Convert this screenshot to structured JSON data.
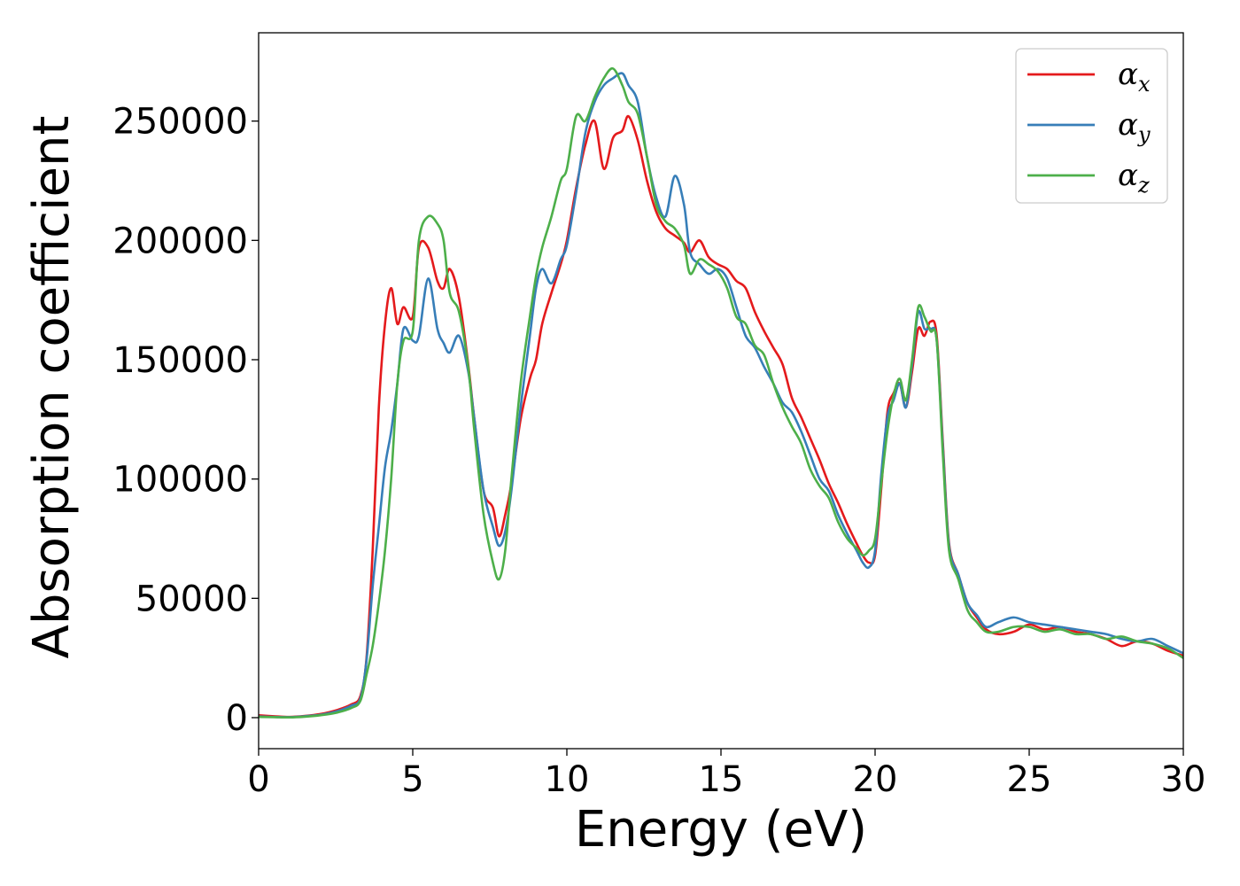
{
  "chart_data": {
    "type": "line",
    "title": "",
    "xlabel": "Energy (eV)",
    "ylabel": "Absorption coefficient",
    "xlim": [
      0,
      30
    ],
    "ylim": [
      -13000,
      287000
    ],
    "xticks": [
      0,
      5,
      10,
      15,
      20,
      25,
      30
    ],
    "xtick_labels": [
      "0",
      "5",
      "10",
      "15",
      "20",
      "25",
      "30"
    ],
    "yticks": [
      0,
      50000,
      100000,
      150000,
      200000,
      250000
    ],
    "ytick_labels": [
      "0",
      "50000",
      "100000",
      "150000",
      "200000",
      "250000"
    ],
    "grid": false,
    "legend_position": "top-right",
    "x": [
      0,
      0.5,
      1,
      1.5,
      2,
      2.5,
      3,
      3.3,
      3.5,
      3.7,
      3.9,
      4.1,
      4.3,
      4.5,
      4.7,
      5,
      5.2,
      5.5,
      5.8,
      6,
      6.2,
      6.5,
      6.8,
      7,
      7.3,
      7.6,
      7.8,
      8,
      8.2,
      8.5,
      8.8,
      9,
      9.2,
      9.5,
      9.8,
      10,
      10.3,
      10.6,
      10.9,
      11.2,
      11.5,
      11.8,
      12,
      12.3,
      12.6,
      12.9,
      13.2,
      13.5,
      13.8,
      14,
      14.3,
      14.6,
      14.9,
      15.2,
      15.5,
      15.8,
      16.1,
      16.4,
      16.7,
      17,
      17.3,
      17.6,
      17.9,
      18.2,
      18.5,
      18.8,
      19.1,
      19.4,
      19.6,
      19.8,
      20,
      20.2,
      20.4,
      20.6,
      20.8,
      21,
      21.2,
      21.4,
      21.6,
      21.8,
      22,
      22.2,
      22.4,
      22.7,
      23,
      23.3,
      23.6,
      24,
      24.5,
      25,
      25.5,
      26,
      26.5,
      27,
      27.5,
      28,
      28.5,
      29,
      29.5,
      30
    ],
    "series": [
      {
        "name": "αx",
        "label_base": "α",
        "label_sub": "x",
        "color": "#e41a1c",
        "values": [
          1000,
          600,
          300,
          700,
          1500,
          3000,
          5500,
          9000,
          25000,
          70000,
          130000,
          165000,
          180000,
          165000,
          172000,
          168000,
          197000,
          197000,
          183000,
          180000,
          188000,
          176000,
          148000,
          125000,
          95000,
          88000,
          76000,
          85000,
          98000,
          125000,
          142000,
          150000,
          165000,
          178000,
          190000,
          200000,
          222000,
          240000,
          250000,
          230000,
          243000,
          246000,
          252000,
          242000,
          225000,
          212000,
          205000,
          202000,
          199000,
          195000,
          200000,
          193000,
          190000,
          188000,
          183000,
          180000,
          170000,
          162000,
          155000,
          148000,
          134000,
          126000,
          117000,
          108000,
          98000,
          90000,
          81000,
          73000,
          68000,
          65000,
          68000,
          96000,
          128000,
          136000,
          140000,
          130000,
          145000,
          163000,
          160000,
          166000,
          160000,
          115000,
          73000,
          60000,
          48000,
          42000,
          37000,
          35000,
          36000,
          39000,
          37000,
          38000,
          36000,
          35000,
          33000,
          30000,
          32000,
          31000,
          28000,
          26000
        ]
      },
      {
        "name": "αy",
        "label_base": "α",
        "label_sub": "y",
        "color": "#377eb8",
        "values": [
          500,
          300,
          200,
          600,
          1200,
          2500,
          5000,
          8000,
          24000,
          55000,
          80000,
          105000,
          120000,
          140000,
          163000,
          158000,
          160000,
          184000,
          163000,
          157000,
          153000,
          160000,
          145000,
          125000,
          95000,
          80000,
          72000,
          78000,
          95000,
          130000,
          160000,
          180000,
          188000,
          182000,
          192000,
          198000,
          220000,
          245000,
          258000,
          265000,
          268000,
          270000,
          265000,
          258000,
          235000,
          218000,
          210000,
          227000,
          215000,
          195000,
          190000,
          186000,
          188000,
          184000,
          172000,
          160000,
          155000,
          147000,
          140000,
          132000,
          128000,
          120000,
          110000,
          100000,
          95000,
          85000,
          77000,
          70000,
          65000,
          63000,
          70000,
          102000,
          126000,
          133000,
          140000,
          130000,
          148000,
          170000,
          163000,
          163000,
          158000,
          113000,
          72000,
          60000,
          48000,
          43000,
          38000,
          40000,
          42000,
          40000,
          39000,
          38000,
          37000,
          36000,
          35000,
          33000,
          32000,
          33000,
          30000,
          27000
        ]
      },
      {
        "name": "αz",
        "label_base": "α",
        "label_sub": "z",
        "color": "#4daf4a",
        "values": [
          300,
          200,
          100,
          400,
          1000,
          2000,
          4000,
          7000,
          18000,
          30000,
          48000,
          70000,
          100000,
          140000,
          158000,
          162000,
          200000,
          210000,
          207000,
          200000,
          178000,
          170000,
          147000,
          120000,
          85000,
          65000,
          58000,
          70000,
          100000,
          140000,
          168000,
          185000,
          197000,
          210000,
          225000,
          230000,
          252000,
          250000,
          260000,
          268000,
          272000,
          265000,
          258000,
          253000,
          235000,
          215000,
          208000,
          205000,
          198000,
          186000,
          192000,
          190000,
          187000,
          180000,
          168000,
          165000,
          156000,
          152000,
          140000,
          130000,
          122000,
          115000,
          104000,
          97000,
          92000,
          82000,
          75000,
          71000,
          68000,
          70000,
          75000,
          98000,
          120000,
          135000,
          142000,
          133000,
          150000,
          172000,
          168000,
          162000,
          158000,
          110000,
          70000,
          58000,
          45000,
          40000,
          36000,
          36000,
          38000,
          38000,
          36000,
          37000,
          35000,
          35000,
          33000,
          34000,
          32000,
          31000,
          29000,
          25000
        ]
      }
    ]
  }
}
